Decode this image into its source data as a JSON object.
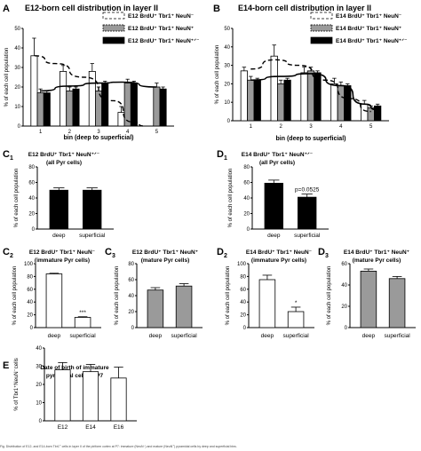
{
  "chart_data": [
    {
      "id": "A",
      "panel_label": "A",
      "type": "bar",
      "title": "E12-born cell distribution in layer II",
      "xlabel": "bin (deep to superficial)",
      "ylabel": "% of each cell population",
      "categories": [
        "1",
        "2",
        "3",
        "4",
        "5"
      ],
      "ylim": [
        0,
        50
      ],
      "yticks": [
        0,
        10,
        20,
        30,
        40,
        50
      ],
      "series": [
        {
          "name": "E12 BrdU⁺ Tbr1⁺ NeuN⁻",
          "style": "white",
          "values": [
            36,
            28,
            28,
            7,
            null
          ],
          "errors": [
            9,
            3,
            4,
            3,
            null
          ]
        },
        {
          "name": "E12 BrdU⁺ Tbr1⁺ NeuN⁺",
          "style": "gray",
          "values": [
            17,
            18,
            18,
            22,
            20
          ],
          "errors": [
            2,
            2,
            2,
            2,
            2
          ]
        },
        {
          "name": "E12 BrdU⁺ Tbr1⁺ NeuN⁺ᐟ⁻",
          "style": "black",
          "values": [
            17,
            19,
            22,
            22,
            19
          ],
          "errors": [
            1,
            1,
            1,
            1,
            1
          ]
        }
      ],
      "curves": [
        {
          "series": 0,
          "dash": true,
          "points": [
            [
              0.8,
              36
            ],
            [
              1.5,
              32
            ],
            [
              2.5,
              25
            ],
            [
              3.5,
              13
            ],
            [
              4.2,
              2
            ],
            [
              4.6,
              0
            ]
          ]
        },
        {
          "series": 2,
          "dash": false,
          "points": [
            [
              1,
              18
            ],
            [
              2,
              20.5
            ],
            [
              3,
              22
            ],
            [
              3.8,
              22.5
            ],
            [
              5,
              20
            ]
          ]
        }
      ]
    },
    {
      "id": "B",
      "panel_label": "B",
      "type": "bar",
      "title": "E14-born cell distribution in layer II",
      "xlabel": "bin (deep to superficial)",
      "ylabel": "% of each cell population",
      "categories": [
        "1",
        "2",
        "3",
        "4",
        "5"
      ],
      "ylim": [
        0,
        50
      ],
      "yticks": [
        0,
        10,
        20,
        30,
        40,
        50
      ],
      "series": [
        {
          "name": "E14 BrdU⁺ Tbr1⁺ NeuN⁻",
          "style": "white",
          "values": [
            27,
            35,
            26,
            20,
            9
          ],
          "errors": [
            2,
            6,
            3,
            3,
            2
          ]
        },
        {
          "name": "E14 BrdU⁺ Tbr1⁺ NeuN⁺",
          "style": "gray",
          "values": [
            22,
            20,
            27,
            19,
            7
          ],
          "errors": [
            2,
            2,
            2,
            2,
            1
          ]
        },
        {
          "name": "E14 BrdU⁺ Tbr1⁺ NeuN⁺ᐟ⁻",
          "style": "black",
          "values": [
            22,
            22,
            26,
            19,
            8
          ],
          "errors": [
            1,
            1,
            1,
            1,
            1
          ]
        }
      ],
      "curves": [
        {
          "series": 0,
          "dash": true,
          "points": [
            [
              1,
              28
            ],
            [
              1.8,
              33
            ],
            [
              2.6,
              30
            ],
            [
              3.5,
              22
            ],
            [
              4.3,
              12
            ],
            [
              5,
              5
            ]
          ]
        },
        {
          "series": 2,
          "dash": false,
          "points": [
            [
              1,
              22
            ],
            [
              2,
              24
            ],
            [
              3,
              25.5
            ],
            [
              4,
              19
            ],
            [
              4.8,
              9
            ],
            [
              5.2,
              6
            ]
          ]
        }
      ]
    },
    {
      "id": "C1",
      "panel_label": "C",
      "panel_sub": "1",
      "type": "bar",
      "title": "E12 BrdU⁺ Tbr1⁺ NeuN⁺ᐟ⁻",
      "subtitle": "(all Pyr cells)",
      "ylabel": "% of each cell population",
      "categories": [
        "deep",
        "superficial"
      ],
      "ylim": [
        0,
        80
      ],
      "yticks": [
        0,
        20,
        40,
        60,
        80
      ],
      "series": [
        {
          "style": "black",
          "values": [
            50,
            50
          ],
          "errors": [
            3,
            3
          ]
        }
      ]
    },
    {
      "id": "D1",
      "panel_label": "D",
      "panel_sub": "1",
      "type": "bar",
      "title": "E14 BrdU⁺ Tbr1⁺ NeuN⁺ᐟ⁻",
      "subtitle": "(all Pyr cells)",
      "ylabel": "% of each cell population",
      "categories": [
        "deep",
        "superficial"
      ],
      "ylim": [
        0,
        80
      ],
      "yticks": [
        0,
        20,
        40,
        60,
        80
      ],
      "series": [
        {
          "style": "black",
          "values": [
            59,
            41
          ],
          "errors": [
            4,
            4
          ]
        }
      ],
      "annotation": "p=0.0525"
    },
    {
      "id": "C2",
      "panel_label": "C",
      "panel_sub": "2",
      "type": "bar",
      "title": "E12 BrdU⁺ Tbr1⁺ NeuN⁻",
      "subtitle": "(immature Pyr cells)",
      "ylabel": "% of each cell population",
      "categories": [
        "deep",
        "superficial"
      ],
      "ylim": [
        0,
        100
      ],
      "yticks": [
        0,
        20,
        40,
        60,
        80,
        100
      ],
      "series": [
        {
          "style": "white",
          "values": [
            84,
            16
          ],
          "errors": [
            1,
            1
          ]
        }
      ],
      "annotation": "***"
    },
    {
      "id": "C3",
      "panel_label": "C",
      "panel_sub": "3",
      "type": "bar",
      "title": "E12 BrdU⁺ Tbr1⁺ NeuN⁺",
      "subtitle": "(mature Pyr cells)",
      "ylabel": "% of each cell population",
      "categories": [
        "deep",
        "superficial"
      ],
      "ylim": [
        0,
        80
      ],
      "yticks": [
        0,
        20,
        40,
        60,
        80
      ],
      "series": [
        {
          "style": "gray",
          "values": [
            47,
            52
          ],
          "errors": [
            3,
            3
          ]
        }
      ]
    },
    {
      "id": "D2",
      "panel_label": "D",
      "panel_sub": "2",
      "type": "bar",
      "title": "E14 BrdU⁺ Tbr1⁺ NeuN⁻",
      "subtitle": "(immature Pyr cells)",
      "ylabel": "% of each cell population",
      "categories": [
        "deep",
        "superficial"
      ],
      "ylim": [
        0,
        100
      ],
      "yticks": [
        0,
        20,
        40,
        60,
        80,
        100
      ],
      "series": [
        {
          "style": "white",
          "values": [
            75,
            25
          ],
          "errors": [
            7,
            7
          ]
        }
      ],
      "annotation": "*"
    },
    {
      "id": "D3",
      "panel_label": "D",
      "panel_sub": "3",
      "type": "bar",
      "title": "E14 BrdU⁺ Tbr1⁺ NeuN⁺",
      "subtitle": "(mature Pyr cells)",
      "ylabel": "% of each cell population",
      "categories": [
        "deep",
        "superficial"
      ],
      "ylim": [
        0,
        60
      ],
      "yticks": [
        0,
        20,
        40,
        60
      ],
      "series": [
        {
          "style": "gray",
          "values": [
            53,
            46
          ],
          "errors": [
            2,
            2
          ]
        }
      ]
    },
    {
      "id": "E",
      "panel_label": "E",
      "type": "bar",
      "title": "Date of birth of immature",
      "subtitle": "pyramidal cells at P7",
      "ylabel": "% of Tbr1⁺NeuN⁻cells",
      "categories": [
        "E12",
        "E14",
        "E16"
      ],
      "ylim": [
        0,
        40
      ],
      "yticks": [
        0,
        10,
        20,
        30,
        40
      ],
      "series": [
        {
          "style": "white",
          "values": [
            28,
            27,
            23.5
          ],
          "errors": [
            4,
            4,
            6
          ]
        }
      ]
    }
  ],
  "colors": {
    "white_bar": "#ffffff",
    "gray_bar": "#9a9a9a",
    "black_bar": "#000000",
    "axis": "#000000"
  },
  "caption": "Fig. Distribution of E12- and E14-born Tbr1⁺ cells in layer II of the piriform cortex at P7: immature (NeuN⁻) and mature (NeuN⁺) pyramidal cells by deep and superficial bins."
}
